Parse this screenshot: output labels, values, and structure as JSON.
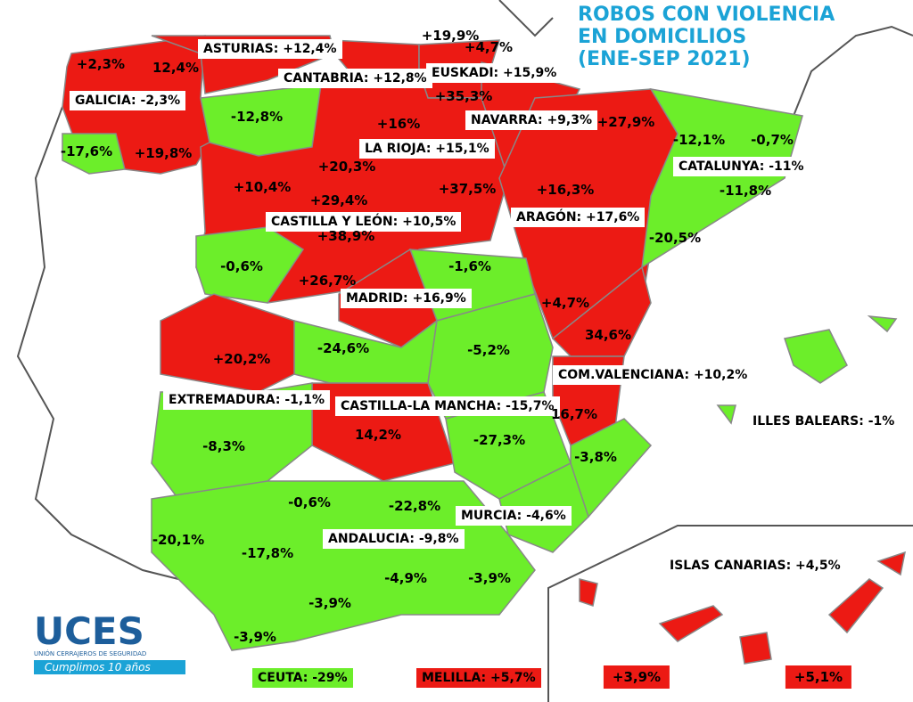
{
  "title": {
    "lines": [
      "ROBOS CON VIOLENCIA",
      "EN DOMICILIOS",
      "(ENE-SEP 2021)"
    ]
  },
  "regions": [
    {
      "label": "ASTURIAS: +12,4%"
    },
    {
      "label": "CANTABRIA: +12,8%"
    },
    {
      "label": "EUSKADI: +15,9%"
    },
    {
      "label": "GALICIA: -2,3%"
    },
    {
      "label": "NAVARRA: +9,3%"
    },
    {
      "label": "LA RIOJA: +15,1%"
    },
    {
      "label": "CATALUNYA: -11%"
    },
    {
      "label": "CASTILLA Y LEÓN: +10,5%"
    },
    {
      "label": "ARAGÓN: +17,6%"
    },
    {
      "label": "MADRID: +16,9%"
    },
    {
      "label": "COM.VALENCIANA: +10,2%"
    },
    {
      "label": "EXTREMADURA: -1,1%"
    },
    {
      "label": "CASTILLA-LA MANCHA: -15,7%"
    },
    {
      "label": "ILLES BALEARS: -1%"
    },
    {
      "label": "MURCIA: -4,6%"
    },
    {
      "label": "ANDALUCIA: -9,8%"
    },
    {
      "label": "ISLAS CANARIAS: +4,5%"
    },
    {
      "label": "CEUTA: -29%"
    },
    {
      "label": "MELILLA: +5,7%"
    }
  ],
  "provinces": [
    "+2,3%",
    "12,4%",
    "+19,9%",
    "+4,7%",
    "+35,3%",
    "-12,8%",
    "+16%",
    "+27,9%",
    "-17,6%",
    "+19,8%",
    "-12,1%",
    "-0,7%",
    "+20,3%",
    "+10,4%",
    "+29,4%",
    "+37,5%",
    "+16,3%",
    "-11,8%",
    "+38,9%",
    "-20,5%",
    "-0,6%",
    "-1,6%",
    "+26,7%",
    "+4,7%",
    "34,6%",
    "-24,6%",
    "-5,2%",
    "+20,2%",
    "16,7%",
    "14,2%",
    "-8,3%",
    "-27,3%",
    "-3,8%",
    "-0,6%",
    "-22,8%",
    "-20,1%",
    "-17,8%",
    "-4,9%",
    "-3,9%",
    "-3,9%",
    "-3,9%",
    "+3,9%",
    "+5,1%"
  ],
  "logo": {
    "name": "UCES",
    "subtitle": "UNIÓN CERRAJEROS DE SEGURIDAD",
    "slogan": "Cumplimos 10 años"
  }
}
